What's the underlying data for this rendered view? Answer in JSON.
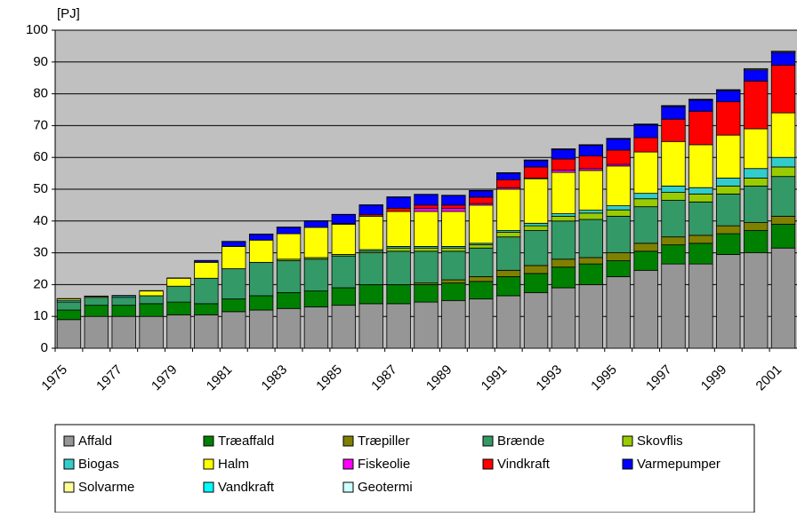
{
  "chart_data": {
    "type": "stacked_bar",
    "y_label": "[PJ]",
    "categories": [
      "1975",
      null,
      "1977",
      null,
      "1979",
      null,
      "1981",
      null,
      "1983",
      null,
      "1985",
      null,
      "1987",
      null,
      "1989",
      null,
      "1991",
      null,
      "1993",
      null,
      "1995",
      null,
      "1997",
      null,
      "1999",
      null,
      "2001"
    ],
    "ylim": [
      0,
      100
    ],
    "yticks": [
      0,
      10,
      20,
      30,
      40,
      50,
      60,
      70,
      80,
      90,
      100
    ],
    "grid": true,
    "series": [
      {
        "name": "Affald",
        "color": "#969696",
        "values": [
          9,
          10,
          10,
          10,
          10.5,
          10.5,
          11.5,
          12,
          12.5,
          13,
          13.5,
          14,
          14,
          14.5,
          15,
          15.5,
          16.5,
          17.5,
          19,
          20,
          22.5,
          24.5,
          26.5,
          26.5,
          29.5,
          30,
          31.5
        ]
      },
      {
        "name": "Træaffald",
        "color": "#008000",
        "values": [
          3,
          3.5,
          3.5,
          4,
          4,
          3.5,
          4,
          4.5,
          5,
          5,
          5.5,
          6,
          6,
          5.5,
          5.5,
          5.5,
          6,
          6,
          6.5,
          6.5,
          5,
          6,
          6,
          6.5,
          6.5,
          7,
          7.5
        ]
      },
      {
        "name": "Træpiller",
        "color": "#808000",
        "values": [
          0,
          0,
          0,
          0,
          0,
          0,
          0,
          0,
          0,
          0,
          0,
          0,
          0,
          0.5,
          1,
          1.5,
          2,
          2.5,
          2.5,
          2,
          2.5,
          2.5,
          2.5,
          2.5,
          2.5,
          2.5,
          2.5
        ]
      },
      {
        "name": "Brænde",
        "color": "#339966",
        "values": [
          2.5,
          2.5,
          2.5,
          2.5,
          5,
          8,
          9.5,
          10.5,
          10,
          10,
          10,
          10,
          10.5,
          10,
          9,
          9,
          10.5,
          11,
          12,
          12,
          11.5,
          11.5,
          11.5,
          10.5,
          10,
          11.5,
          12.5
        ]
      },
      {
        "name": "Skovflis",
        "color": "#99cc00",
        "values": [
          0,
          0,
          0,
          0,
          0,
          0,
          0,
          0,
          0.5,
          0.5,
          0.5,
          0.5,
          1,
          1,
          1,
          1,
          1.5,
          1.5,
          1.5,
          2,
          2,
          2.5,
          2.5,
          2.5,
          2.5,
          2.5,
          3
        ]
      },
      {
        "name": "Biogas",
        "color": "#33cccc",
        "values": [
          0.5,
          0,
          0.5,
          0,
          0,
          0,
          0,
          0,
          0,
          0,
          0,
          0.5,
          0.5,
          0.5,
          0.5,
          0.5,
          0.5,
          0.8,
          0.8,
          0.9,
          1.3,
          1.7,
          2,
          2,
          2.5,
          3,
          3
        ]
      },
      {
        "name": "Halm",
        "color": "#ffff00",
        "values": [
          0.5,
          0.3,
          0,
          1.5,
          2.5,
          5,
          7,
          7,
          8,
          9.5,
          9.5,
          10.5,
          11,
          11,
          11,
          12,
          13,
          14,
          13,
          12.5,
          12.5,
          13,
          14,
          13.5,
          13.5,
          12.5,
          14
        ]
      },
      {
        "name": "Fiskeolie",
        "color": "#ff00ff",
        "values": [
          0,
          0,
          0,
          0,
          0,
          0,
          0,
          0,
          0,
          0,
          0,
          0,
          0,
          1,
          1,
          0.5,
          0.5,
          0.2,
          0.7,
          0.6,
          0.5,
          0,
          0,
          0,
          0,
          0,
          0
        ]
      },
      {
        "name": "Vindkraft",
        "color": "#ff0000",
        "values": [
          0,
          0,
          0,
          0,
          0,
          0,
          0,
          0,
          0,
          0,
          0.2,
          0.5,
          1,
          1,
          1,
          2,
          2.5,
          3.5,
          3.5,
          4,
          4.5,
          4.5,
          7,
          10.5,
          10.5,
          15,
          15
        ]
      },
      {
        "name": "Varmepumper",
        "color": "#0000ff",
        "values": [
          0,
          0,
          0,
          0,
          0,
          0.5,
          1.5,
          1.8,
          2,
          2,
          2.8,
          3,
          3.5,
          3.3,
          3,
          2,
          2,
          2,
          3,
          3.3,
          3.5,
          4,
          4,
          3.5,
          3.5,
          3.5,
          4
        ]
      },
      {
        "name": "Solvarme",
        "color": "#ffff99",
        "values": [
          0,
          0,
          0,
          0,
          0,
          0,
          0,
          0,
          0,
          0,
          0,
          0,
          0,
          0,
          0,
          0,
          0.1,
          0.1,
          0.1,
          0.1,
          0.1,
          0.2,
          0.2,
          0.2,
          0.2,
          0.3,
          0.3
        ]
      },
      {
        "name": "Vandkraft",
        "color": "#00ffff",
        "values": [
          0.1,
          0.1,
          0.1,
          0.1,
          0.1,
          0.1,
          0.1,
          0.1,
          0.1,
          0.1,
          0.1,
          0.1,
          0.1,
          0.1,
          0.1,
          0.1,
          0.1,
          0.1,
          0.1,
          0.1,
          0.1,
          0.1,
          0.1,
          0.1,
          0.1,
          0.1,
          0.1
        ]
      },
      {
        "name": "Geotermi",
        "color": "#ccffff",
        "values": [
          0,
          0,
          0,
          0,
          0,
          0,
          0,
          0,
          0,
          0,
          0,
          0,
          0,
          0,
          0,
          0,
          0,
          0,
          0,
          0,
          0,
          0,
          0,
          0,
          0,
          0,
          0
        ]
      }
    ]
  }
}
